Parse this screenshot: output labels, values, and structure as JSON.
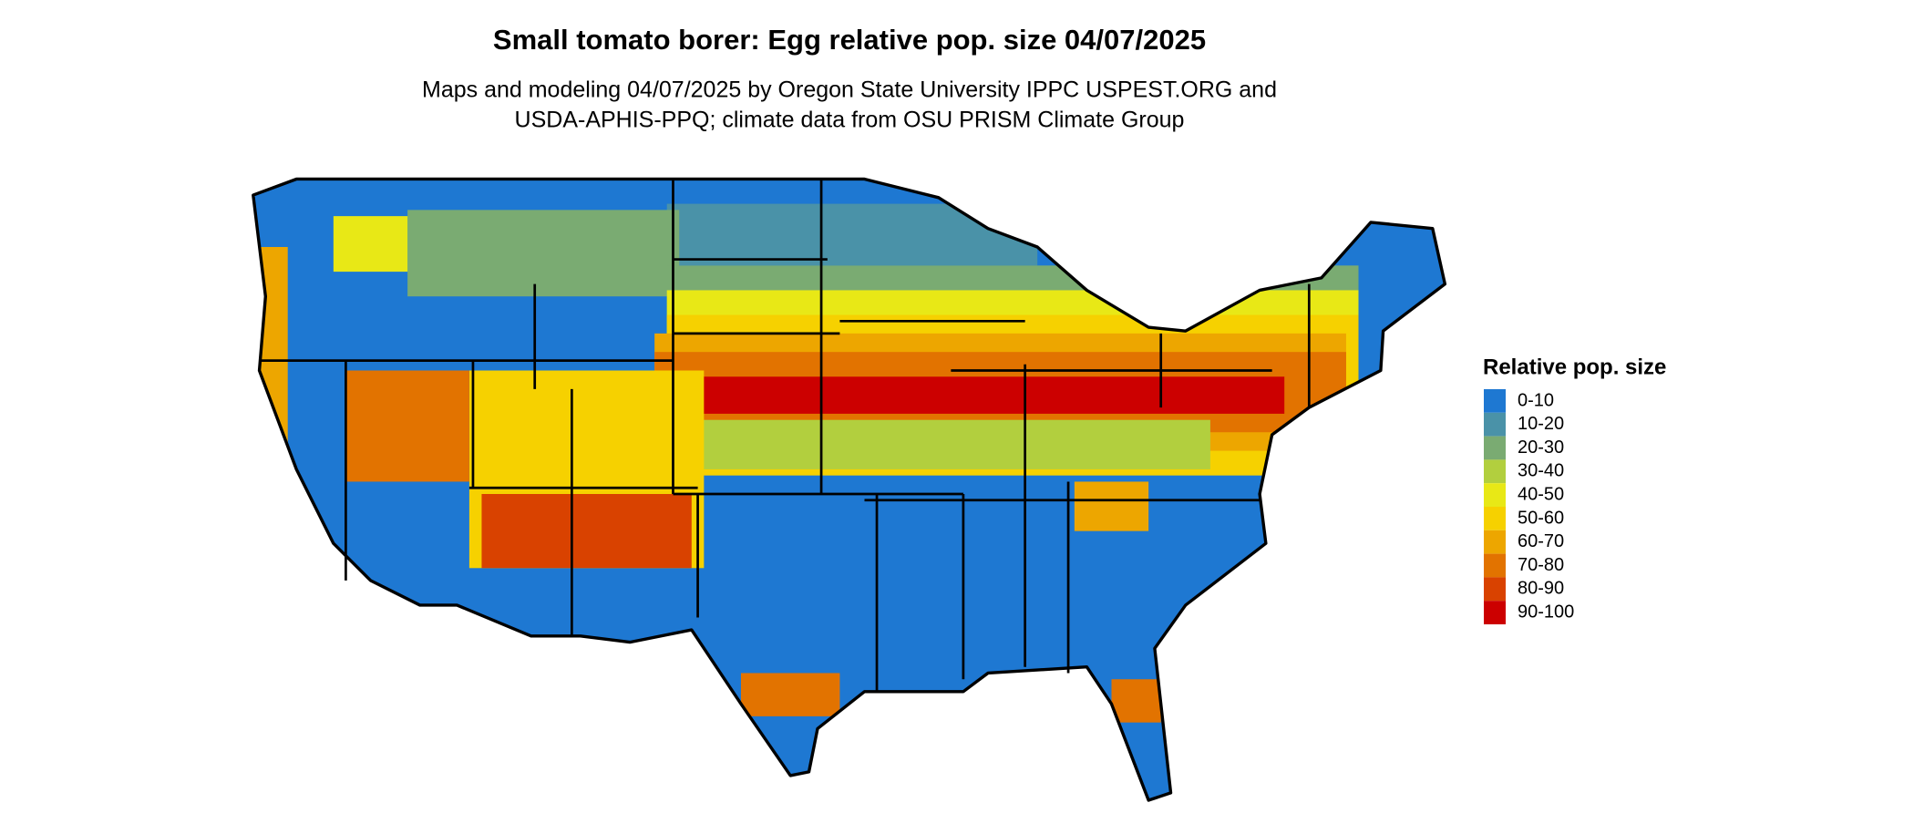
{
  "title": "Small tomato borer: Egg relative pop. size 04/07/2025",
  "subtitle": [
    "Maps and modeling 04/07/2025 by Oregon State University IPPC USPEST.ORG and",
    "USDA-APHIS-PPQ; climate data from OSU PRISM Climate Group"
  ],
  "legend": {
    "title": "Relative pop. size",
    "items": [
      {
        "label": "0-10",
        "color": "#1e78d2"
      },
      {
        "label": "10-20",
        "color": "#4a92a8"
      },
      {
        "label": "20-30",
        "color": "#7aab72"
      },
      {
        "label": "30-40",
        "color": "#b2cf3e"
      },
      {
        "label": "40-50",
        "color": "#e8e816"
      },
      {
        "label": "50-60",
        "color": "#f6d100"
      },
      {
        "label": "60-70",
        "color": "#eda600"
      },
      {
        "label": "70-80",
        "color": "#e27300"
      },
      {
        "label": "80-90",
        "color": "#d94200"
      },
      {
        "label": "90-100",
        "color": "#cc0000"
      }
    ]
  }
}
